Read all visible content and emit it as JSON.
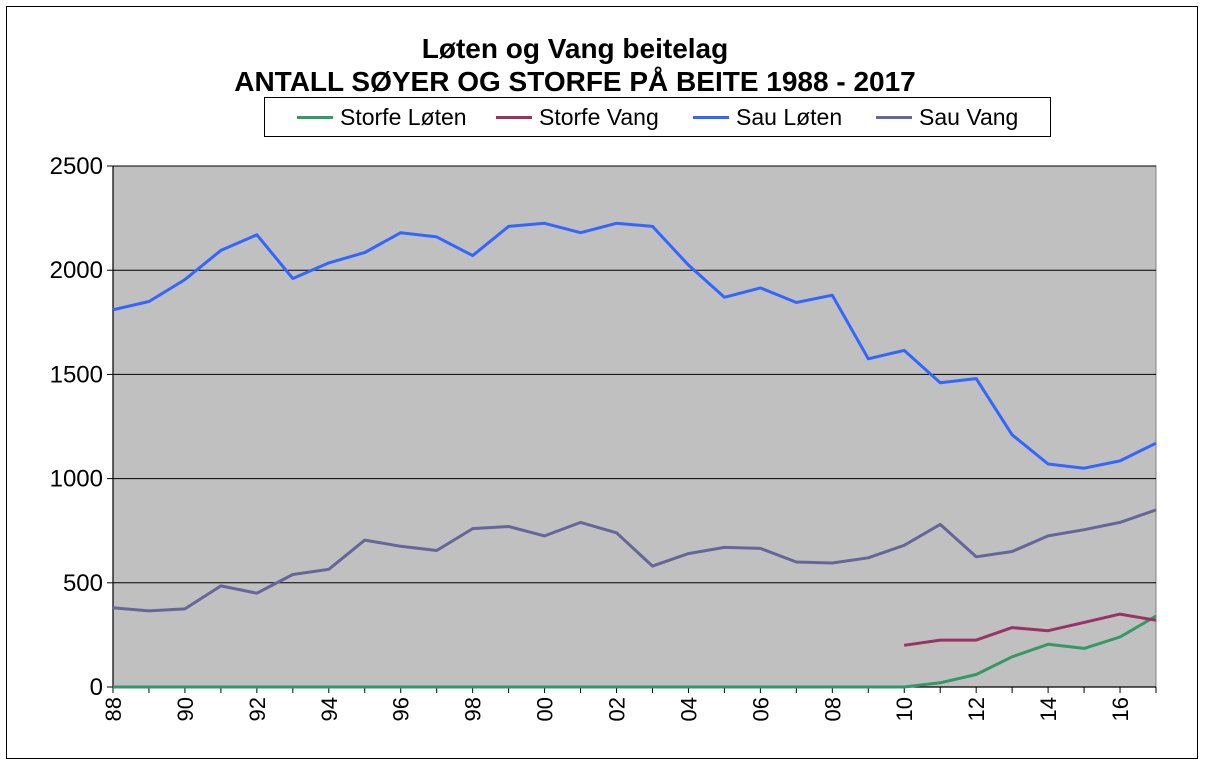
{
  "chart_data": {
    "type": "line",
    "title": "Løten og Vang beitelag",
    "subtitle": "ANTALL SØYER OG STORFE PÅ BEITE 1988 - 2017",
    "xlabel": "",
    "ylabel": "",
    "x": [
      1988,
      1989,
      1990,
      1991,
      1992,
      1993,
      1994,
      1995,
      1996,
      1997,
      1998,
      1999,
      2000,
      2001,
      2002,
      2003,
      2004,
      2005,
      2006,
      2007,
      2008,
      2009,
      2010,
      2011,
      2012,
      2013,
      2014,
      2015,
      2016,
      2017
    ],
    "x_tick_labels": [
      "88",
      "90",
      "92",
      "94",
      "96",
      "98",
      "00",
      "02",
      "04",
      "06",
      "08",
      "10",
      "12",
      "14",
      "16"
    ],
    "ylim": [
      0,
      2500
    ],
    "y_ticks": [
      0,
      500,
      1000,
      1500,
      2000,
      2500
    ],
    "grid": "horizontal",
    "legend_position": "top",
    "plot_background": "#c0c0c0",
    "series": [
      {
        "name": "Storfe Løten",
        "color": "#339966",
        "values": [
          0,
          0,
          0,
          0,
          0,
          0,
          0,
          0,
          0,
          0,
          0,
          0,
          0,
          0,
          0,
          0,
          0,
          0,
          0,
          0,
          0,
          0,
          0,
          20,
          60,
          145,
          205,
          185,
          240,
          340
        ]
      },
      {
        "name": "Storfe Vang",
        "color": "#993366",
        "values": [
          null,
          null,
          null,
          null,
          null,
          null,
          null,
          null,
          null,
          null,
          null,
          null,
          null,
          null,
          null,
          null,
          null,
          null,
          null,
          null,
          null,
          null,
          200,
          225,
          225,
          285,
          270,
          310,
          350,
          320
        ]
      },
      {
        "name": "Sau Løten",
        "color": "#3366ff",
        "values": [
          1810,
          1850,
          1955,
          2095,
          2170,
          1960,
          2035,
          2085,
          2180,
          2160,
          2070,
          2210,
          2225,
          2180,
          2225,
          2210,
          2025,
          1870,
          1915,
          1845,
          1880,
          1575,
          1615,
          1460,
          1480,
          1210,
          1070,
          1050,
          1085,
          1170
        ]
      },
      {
        "name": "Sau Vang",
        "color": "#666699",
        "values": [
          380,
          365,
          375,
          485,
          450,
          540,
          565,
          705,
          675,
          655,
          760,
          770,
          725,
          790,
          740,
          580,
          640,
          670,
          665,
          600,
          595,
          620,
          680,
          780,
          625,
          650,
          725,
          755,
          790,
          850
        ]
      }
    ]
  }
}
